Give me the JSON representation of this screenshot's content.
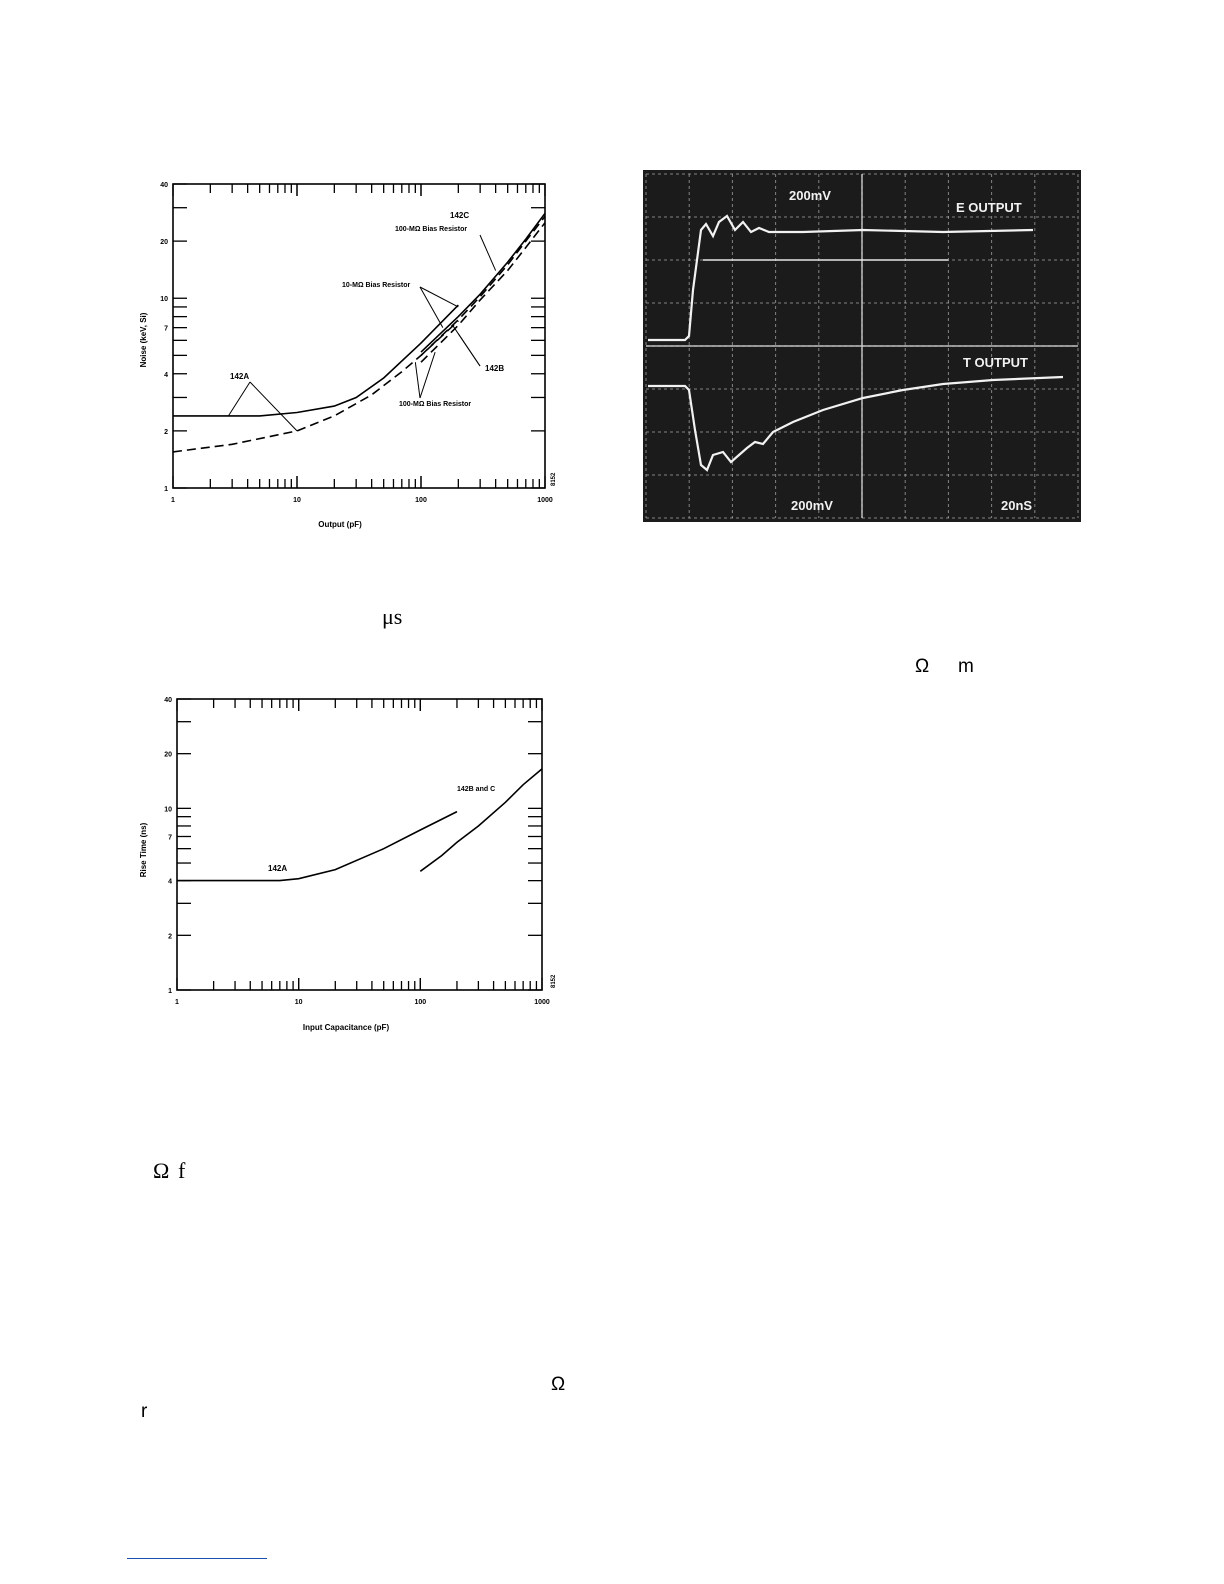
{
  "charts": [
    {
      "name": "noise-chart",
      "type": "line",
      "xscale": "log",
      "yscale": "log",
      "xlim": [
        1,
        1000
      ],
      "ylim": [
        1,
        40
      ],
      "xticks": [
        "1",
        "10",
        "100",
        "1000"
      ],
      "yticks": [
        "1",
        "2",
        "4",
        "7",
        "10",
        "20",
        "40"
      ],
      "xlabel": "Output (pF)",
      "ylabel": "Noise (keV, Si)",
      "figure_id": "8152",
      "annotations": [
        "142C",
        "100-MΩ Bias Resistor",
        "10-MΩ Bias Resistor",
        "142A",
        "142B",
        "100-MΩ Bias Resistor"
      ],
      "series": [
        {
          "name": "142A",
          "style": "solid",
          "x": [
            1,
            5,
            10,
            20,
            30,
            50,
            100,
            200
          ],
          "y": [
            2.4,
            2.4,
            2.5,
            2.7,
            3.0,
            3.8,
            5.8,
            9.2
          ]
        },
        {
          "name": "142A",
          "style": "dashed",
          "x": [
            1,
            3,
            10,
            20,
            40,
            70,
            100,
            200
          ],
          "y": [
            1.55,
            1.7,
            2.0,
            2.4,
            3.1,
            4.1,
            5.0,
            7.6
          ]
        },
        {
          "name": "142B",
          "style": "solid",
          "x": [
            100,
            200,
            300,
            500,
            700,
            1000
          ],
          "y": [
            5.2,
            8.0,
            10.5,
            15.5,
            20.5,
            28
          ]
        },
        {
          "name": "142B",
          "style": "dashed",
          "x": [
            100,
            200,
            300,
            500,
            700,
            1000
          ],
          "y": [
            4.6,
            7.2,
            9.8,
            14.0,
            18.5,
            25
          ]
        },
        {
          "name": "142C",
          "style": "dashed",
          "x": [
            100,
            200,
            300,
            500,
            700,
            1000
          ],
          "y": [
            5.0,
            7.7,
            10.2,
            15.0,
            20.0,
            27
          ]
        }
      ]
    },
    {
      "name": "rise-time-chart",
      "type": "line",
      "xscale": "log",
      "yscale": "log",
      "xlim": [
        1,
        1000
      ],
      "ylim": [
        1,
        40
      ],
      "xticks": [
        "1",
        "10",
        "100",
        "1000"
      ],
      "yticks": [
        "1",
        "2",
        "4",
        "7",
        "10",
        "20",
        "40"
      ],
      "xlabel": "Input Capacitance (pF)",
      "ylabel": "Rise Time (ns)",
      "figure_id": "8152",
      "annotations": [
        "142A",
        "142B and C"
      ],
      "series": [
        {
          "name": "142A",
          "style": "solid",
          "x": [
            1,
            3,
            7,
            10,
            20,
            50,
            100,
            200
          ],
          "y": [
            4.0,
            4.0,
            4.0,
            4.1,
            4.6,
            6.0,
            7.6,
            9.6
          ]
        },
        {
          "name": "142B and C",
          "style": "solid",
          "x": [
            100,
            150,
            200,
            300,
            500,
            700,
            1000
          ],
          "y": [
            4.5,
            5.5,
            6.5,
            8.0,
            10.8,
            13.5,
            16.5
          ]
        }
      ]
    }
  ],
  "scope": {
    "labels": {
      "e_output": "E OUTPUT",
      "t_output": "T OUTPUT",
      "top_scale": "200mV",
      "bottom_scale": "200mV",
      "time_scale": "20nS"
    },
    "colors": {
      "screen": "#1b1b1b",
      "grid": "#d9d9d9",
      "trace": "#f2f2f2"
    }
  },
  "fragments": {
    "us": "μs",
    "omega_m_1": "Ω",
    "omega_m_2": "m",
    "omega_f_1": "Ω",
    "omega_f_2": "f",
    "omega_r_1": "Ω",
    "omega_r_2": "r"
  }
}
